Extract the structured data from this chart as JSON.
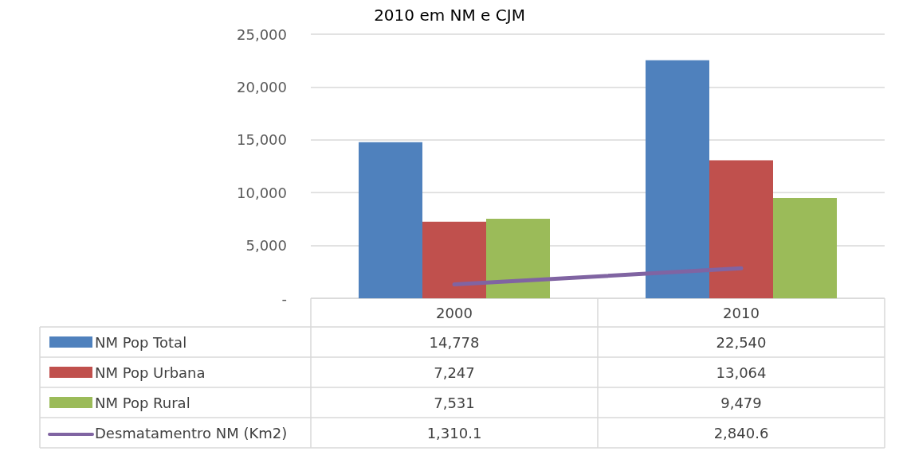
{
  "chart_data": {
    "type": "bar",
    "title": "2010 em NM e CJM",
    "categories": [
      "2000",
      "2010"
    ],
    "series": [
      {
        "name": "NM Pop Total",
        "color": "#4f81bd",
        "values": [
          14778,
          22540
        ],
        "value_labels": [
          "14,778",
          "22,540"
        ]
      },
      {
        "name": "NM Pop Urbana",
        "color": "#c0504d",
        "values": [
          7247,
          13064
        ],
        "value_labels": [
          "7,247",
          "13,064"
        ]
      },
      {
        "name": "NM Pop Rural",
        "color": "#9bbb59",
        "values": [
          7531,
          9479
        ],
        "value_labels": [
          "7,531",
          "9,479"
        ]
      },
      {
        "name": "Desmatamentro NM (Km2)",
        "type": "line",
        "color": "#8064a2",
        "values": [
          1310.1,
          2840.6
        ],
        "value_labels": [
          "1,310.1",
          "2,840.6"
        ]
      }
    ],
    "ylim": [
      0,
      25000
    ],
    "yticks": [
      {
        "value": 0,
        "label": "-"
      },
      {
        "value": 5000,
        "label": "5,000"
      },
      {
        "value": 10000,
        "label": "10,000"
      },
      {
        "value": 15000,
        "label": "15,000"
      },
      {
        "value": 20000,
        "label": "20,000"
      },
      {
        "value": 25000,
        "label": "25,000"
      }
    ],
    "grid": "y",
    "legend": "bottom left",
    "marker": "none",
    "line_style": "solid"
  }
}
